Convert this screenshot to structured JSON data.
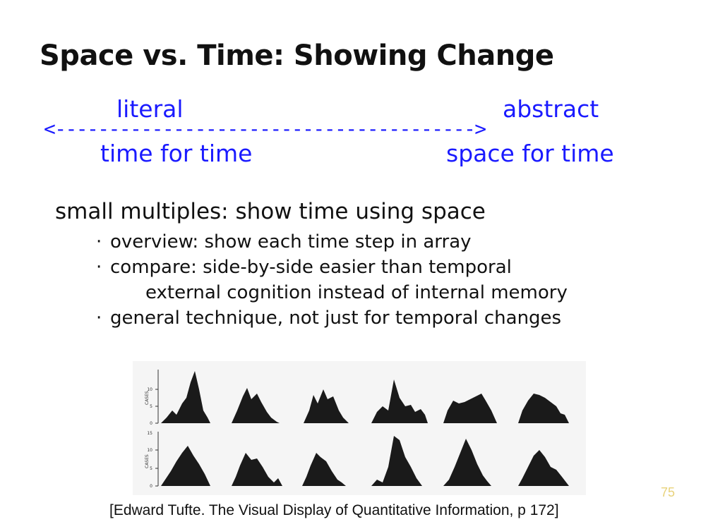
{
  "slide": {
    "title": "Space vs. Time: Showing Change",
    "spectrum": {
      "left_label": "literal",
      "right_label": "abstract",
      "arrow": "<--------------------------------------->",
      "left_sub": "time for time",
      "right_sub": "space for time"
    },
    "heading": "small multiples: show time using space",
    "bullets": [
      "overview: show each time step in array",
      "compare: side-by-side easier than temporal",
      "general technique, not just for temporal changes"
    ],
    "sub_bullet": "external cognition instead of internal memory",
    "bullet_marker": "·",
    "citation": "[Edward Tufte. The Visual Display of Quantitative Information, p 172]",
    "page_number": "75"
  },
  "figure": {
    "axis_label": "CASES",
    "ticks": [
      "15",
      "10",
      "5",
      "0"
    ],
    "rows": 2,
    "columns": 6,
    "fill_color": "#1a1a1a",
    "background": "#f5f5f5"
  }
}
